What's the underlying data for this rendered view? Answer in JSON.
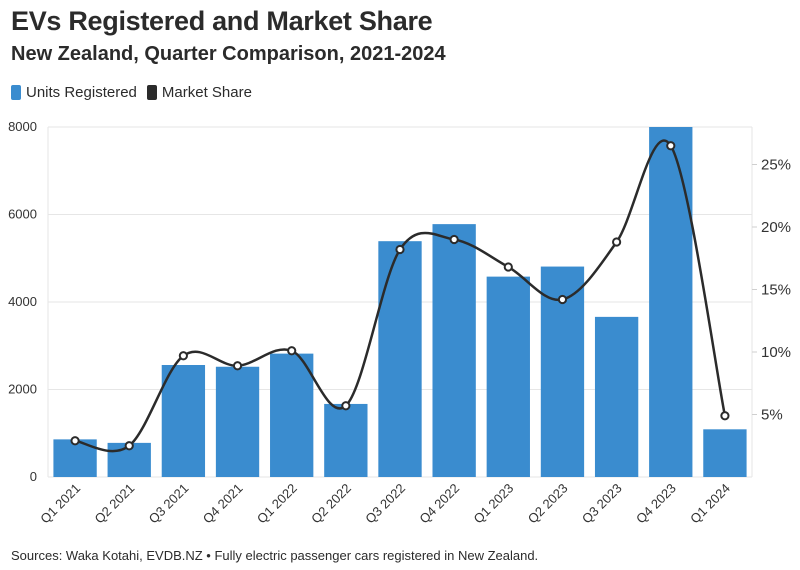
{
  "title": "EVs Registered and Market Share",
  "subtitle": "New Zealand, Quarter Comparison, 2021-2024",
  "legend": {
    "units": "Units Registered",
    "share": "Market Share"
  },
  "footer": "Sources: Waka Kotahi, EVDB.NZ • Fully electric passenger cars registered in New Zealand.",
  "colors": {
    "bar": "#3a8ccf",
    "line": "#2b2b2b",
    "grid": "#e6e6e6"
  },
  "chart_data": {
    "type": "bar",
    "categories": [
      "Q1 2021",
      "Q2 2021",
      "Q3 2021",
      "Q4 2021",
      "Q1 2022",
      "Q2 2022",
      "Q3 2022",
      "Q4 2022",
      "Q1 2023",
      "Q2 2023",
      "Q3 2023",
      "Q4 2023",
      "Q1 2024"
    ],
    "series": [
      {
        "name": "Units Registered",
        "type": "bar",
        "axis": "left",
        "values": [
          860,
          780,
          2560,
          2520,
          2820,
          1670,
          5390,
          5780,
          4580,
          4810,
          3660,
          8000,
          1090
        ]
      },
      {
        "name": "Market Share",
        "type": "line",
        "axis": "right",
        "values": [
          2.9,
          2.5,
          9.7,
          8.9,
          10.1,
          5.7,
          18.2,
          19.0,
          16.8,
          14.2,
          18.8,
          26.5,
          4.9
        ]
      }
    ],
    "left_axis": {
      "ylim": [
        0,
        8000
      ],
      "ticks": [
        0,
        2000,
        4000,
        6000,
        8000
      ],
      "tick_labels": [
        "0",
        "2000",
        "4000",
        "6000",
        "8000"
      ]
    },
    "right_axis": {
      "ylim": [
        0,
        28
      ],
      "ticks": [
        5,
        10,
        15,
        20,
        25
      ],
      "tick_labels": [
        "5%",
        "10%",
        "15%",
        "20%",
        "25%"
      ]
    },
    "grid": true,
    "legend_position": "top-left"
  }
}
